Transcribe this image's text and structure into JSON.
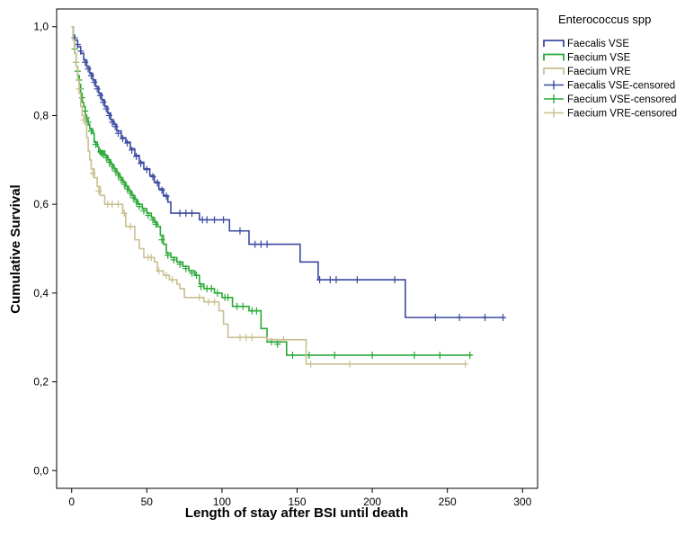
{
  "chart_data": {
    "type": "line",
    "subtype": "kaplan-meier-step",
    "xlabel": "Length of stay after BSI until death",
    "ylabel": "Cumulative Survival",
    "xlim": [
      -10,
      310
    ],
    "ylim": [
      -0.04,
      1.04
    ],
    "xticks": [
      0,
      50,
      100,
      150,
      200,
      250,
      300
    ],
    "yticks": [
      0,
      0.2,
      0.4,
      0.6,
      0.8,
      1.0
    ],
    "xtick_labels": [
      "0",
      "50",
      "100",
      "150",
      "200",
      "250",
      "300"
    ],
    "ytick_labels": [
      "0,0",
      "0,2",
      "0,4",
      "0,6",
      "0,8",
      "1,0"
    ],
    "grid": false,
    "legend": {
      "title": "Enterococcus spp",
      "placement": "outside-top-right",
      "entries": [
        {
          "label": "Faecalis VSE",
          "marker": "line",
          "series": 0
        },
        {
          "label": "Faecium VSE",
          "marker": "line",
          "series": 1
        },
        {
          "label": "Faecium VRE",
          "marker": "line",
          "series": 2
        },
        {
          "label": "Faecalis VSE-censored",
          "marker": "plus",
          "series": 0
        },
        {
          "label": "Faecium VSE-censored",
          "marker": "plus",
          "series": 1
        },
        {
          "label": "Faecium VRE-censored",
          "marker": "plus",
          "series": 2
        }
      ]
    },
    "series": [
      {
        "color": "#3b4aa0",
        "steps": [
          [
            0,
            1.0
          ],
          [
            1,
            0.98
          ],
          [
            2,
            0.97
          ],
          [
            4,
            0.955
          ],
          [
            6,
            0.94
          ],
          [
            8,
            0.925
          ],
          [
            10,
            0.91
          ],
          [
            12,
            0.895
          ],
          [
            14,
            0.88
          ],
          [
            16,
            0.865
          ],
          [
            18,
            0.85
          ],
          [
            20,
            0.835
          ],
          [
            22,
            0.82
          ],
          [
            24,
            0.805
          ],
          [
            26,
            0.79
          ],
          [
            28,
            0.78
          ],
          [
            30,
            0.765
          ],
          [
            33,
            0.75
          ],
          [
            36,
            0.74
          ],
          [
            39,
            0.725
          ],
          [
            42,
            0.71
          ],
          [
            45,
            0.695
          ],
          [
            48,
            0.68
          ],
          [
            52,
            0.665
          ],
          [
            55,
            0.65
          ],
          [
            58,
            0.635
          ],
          [
            61,
            0.62
          ],
          [
            64,
            0.605
          ],
          [
            66,
            0.58
          ],
          [
            85,
            0.565
          ],
          [
            105,
            0.54
          ],
          [
            118,
            0.51
          ],
          [
            152,
            0.47
          ],
          [
            164,
            0.43
          ],
          [
            222,
            0.345
          ],
          [
            288,
            0.345
          ]
        ],
        "censored": [
          [
            2,
            0.975
          ],
          [
            4,
            0.96
          ],
          [
            6,
            0.945
          ],
          [
            9,
            0.92
          ],
          [
            11,
            0.905
          ],
          [
            13,
            0.89
          ],
          [
            15,
            0.875
          ],
          [
            17,
            0.86
          ],
          [
            19,
            0.845
          ],
          [
            21,
            0.83
          ],
          [
            23,
            0.815
          ],
          [
            25,
            0.8
          ],
          [
            27,
            0.785
          ],
          [
            29,
            0.775
          ],
          [
            31,
            0.76
          ],
          [
            34,
            0.748
          ],
          [
            37,
            0.738
          ],
          [
            40,
            0.722
          ],
          [
            43,
            0.708
          ],
          [
            46,
            0.692
          ],
          [
            50,
            0.678
          ],
          [
            54,
            0.662
          ],
          [
            57,
            0.648
          ],
          [
            60,
            0.632
          ],
          [
            63,
            0.618
          ],
          [
            72,
            0.58
          ],
          [
            76,
            0.58
          ],
          [
            80,
            0.58
          ],
          [
            87,
            0.565
          ],
          [
            90,
            0.565
          ],
          [
            95,
            0.565
          ],
          [
            101,
            0.565
          ],
          [
            112,
            0.54
          ],
          [
            122,
            0.51
          ],
          [
            126,
            0.51
          ],
          [
            130,
            0.51
          ],
          [
            165,
            0.43
          ],
          [
            172,
            0.43
          ],
          [
            176,
            0.43
          ],
          [
            190,
            0.43
          ],
          [
            215,
            0.43
          ],
          [
            242,
            0.345
          ],
          [
            258,
            0.345
          ],
          [
            275,
            0.345
          ],
          [
            287,
            0.345
          ]
        ]
      },
      {
        "color": "#2aa836",
        "steps": [
          [
            0,
            1.0
          ],
          [
            1,
            0.97
          ],
          [
            2,
            0.94
          ],
          [
            3,
            0.91
          ],
          [
            4,
            0.89
          ],
          [
            5,
            0.87
          ],
          [
            6,
            0.85
          ],
          [
            7,
            0.83
          ],
          [
            8,
            0.82
          ],
          [
            9,
            0.8
          ],
          [
            10,
            0.79
          ],
          [
            11,
            0.78
          ],
          [
            12,
            0.77
          ],
          [
            14,
            0.76
          ],
          [
            15,
            0.74
          ],
          [
            17,
            0.73
          ],
          [
            18,
            0.72
          ],
          [
            22,
            0.71
          ],
          [
            24,
            0.7
          ],
          [
            26,
            0.69
          ],
          [
            28,
            0.68
          ],
          [
            30,
            0.67
          ],
          [
            32,
            0.66
          ],
          [
            34,
            0.65
          ],
          [
            36,
            0.64
          ],
          [
            38,
            0.63
          ],
          [
            40,
            0.62
          ],
          [
            42,
            0.61
          ],
          [
            44,
            0.6
          ],
          [
            47,
            0.59
          ],
          [
            50,
            0.58
          ],
          [
            53,
            0.57
          ],
          [
            55,
            0.56
          ],
          [
            57,
            0.55
          ],
          [
            59,
            0.53
          ],
          [
            61,
            0.51
          ],
          [
            63,
            0.49
          ],
          [
            66,
            0.48
          ],
          [
            70,
            0.47
          ],
          [
            74,
            0.46
          ],
          [
            78,
            0.45
          ],
          [
            82,
            0.44
          ],
          [
            85,
            0.42
          ],
          [
            88,
            0.41
          ],
          [
            95,
            0.4
          ],
          [
            100,
            0.39
          ],
          [
            107,
            0.37
          ],
          [
            118,
            0.36
          ],
          [
            126,
            0.32
          ],
          [
            130,
            0.29
          ],
          [
            143,
            0.26
          ],
          [
            266,
            0.26
          ]
        ],
        "censored": [
          [
            2,
            0.95
          ],
          [
            3,
            0.92
          ],
          [
            4,
            0.9
          ],
          [
            5,
            0.88
          ],
          [
            6,
            0.86
          ],
          [
            7,
            0.84
          ],
          [
            9,
            0.81
          ],
          [
            10,
            0.795
          ],
          [
            11,
            0.785
          ],
          [
            13,
            0.765
          ],
          [
            16,
            0.735
          ],
          [
            19,
            0.718
          ],
          [
            20,
            0.715
          ],
          [
            21,
            0.712
          ],
          [
            23,
            0.705
          ],
          [
            25,
            0.695
          ],
          [
            27,
            0.685
          ],
          [
            29,
            0.675
          ],
          [
            31,
            0.665
          ],
          [
            33,
            0.655
          ],
          [
            35,
            0.645
          ],
          [
            37,
            0.635
          ],
          [
            39,
            0.625
          ],
          [
            41,
            0.615
          ],
          [
            43,
            0.605
          ],
          [
            45,
            0.595
          ],
          [
            48,
            0.585
          ],
          [
            51,
            0.575
          ],
          [
            54,
            0.565
          ],
          [
            56,
            0.555
          ],
          [
            60,
            0.52
          ],
          [
            64,
            0.485
          ],
          [
            68,
            0.475
          ],
          [
            72,
            0.465
          ],
          [
            76,
            0.455
          ],
          [
            80,
            0.445
          ],
          [
            83,
            0.44
          ],
          [
            86,
            0.415
          ],
          [
            90,
            0.41
          ],
          [
            93,
            0.41
          ],
          [
            97,
            0.4
          ],
          [
            102,
            0.39
          ],
          [
            104,
            0.39
          ],
          [
            110,
            0.37
          ],
          [
            114,
            0.37
          ],
          [
            120,
            0.36
          ],
          [
            123,
            0.36
          ],
          [
            133,
            0.29
          ],
          [
            137,
            0.285
          ],
          [
            147,
            0.26
          ],
          [
            158,
            0.26
          ],
          [
            175,
            0.26
          ],
          [
            200,
            0.26
          ],
          [
            228,
            0.26
          ],
          [
            245,
            0.26
          ],
          [
            265,
            0.26
          ]
        ]
      },
      {
        "color": "#c9bf8f",
        "steps": [
          [
            0,
            1.0
          ],
          [
            1,
            0.97
          ],
          [
            2,
            0.94
          ],
          [
            3,
            0.91
          ],
          [
            4,
            0.88
          ],
          [
            5,
            0.85
          ],
          [
            6,
            0.82
          ],
          [
            7,
            0.8
          ],
          [
            9,
            0.78
          ],
          [
            10,
            0.75
          ],
          [
            11,
            0.72
          ],
          [
            12,
            0.7
          ],
          [
            13,
            0.68
          ],
          [
            15,
            0.66
          ],
          [
            17,
            0.64
          ],
          [
            19,
            0.62
          ],
          [
            22,
            0.6
          ],
          [
            34,
            0.58
          ],
          [
            36,
            0.55
          ],
          [
            42,
            0.52
          ],
          [
            45,
            0.5
          ],
          [
            48,
            0.48
          ],
          [
            55,
            0.47
          ],
          [
            57,
            0.45
          ],
          [
            61,
            0.44
          ],
          [
            65,
            0.43
          ],
          [
            70,
            0.42
          ],
          [
            72,
            0.41
          ],
          [
            75,
            0.39
          ],
          [
            88,
            0.38
          ],
          [
            98,
            0.36
          ],
          [
            101,
            0.33
          ],
          [
            104,
            0.3
          ],
          [
            130,
            0.295
          ],
          [
            156,
            0.24
          ],
          [
            262,
            0.24
          ]
        ],
        "censored": [
          [
            3,
            0.92
          ],
          [
            5,
            0.86
          ],
          [
            8,
            0.79
          ],
          [
            14,
            0.67
          ],
          [
            18,
            0.63
          ],
          [
            24,
            0.6
          ],
          [
            27,
            0.6
          ],
          [
            31,
            0.6
          ],
          [
            35,
            0.58
          ],
          [
            39,
            0.55
          ],
          [
            51,
            0.48
          ],
          [
            53,
            0.48
          ],
          [
            58,
            0.45
          ],
          [
            63,
            0.44
          ],
          [
            67,
            0.43
          ],
          [
            85,
            0.39
          ],
          [
            91,
            0.38
          ],
          [
            95,
            0.38
          ],
          [
            112,
            0.3
          ],
          [
            116,
            0.3
          ],
          [
            120,
            0.3
          ],
          [
            141,
            0.295
          ],
          [
            159,
            0.24
          ],
          [
            185,
            0.24
          ],
          [
            262,
            0.24
          ]
        ]
      }
    ]
  }
}
